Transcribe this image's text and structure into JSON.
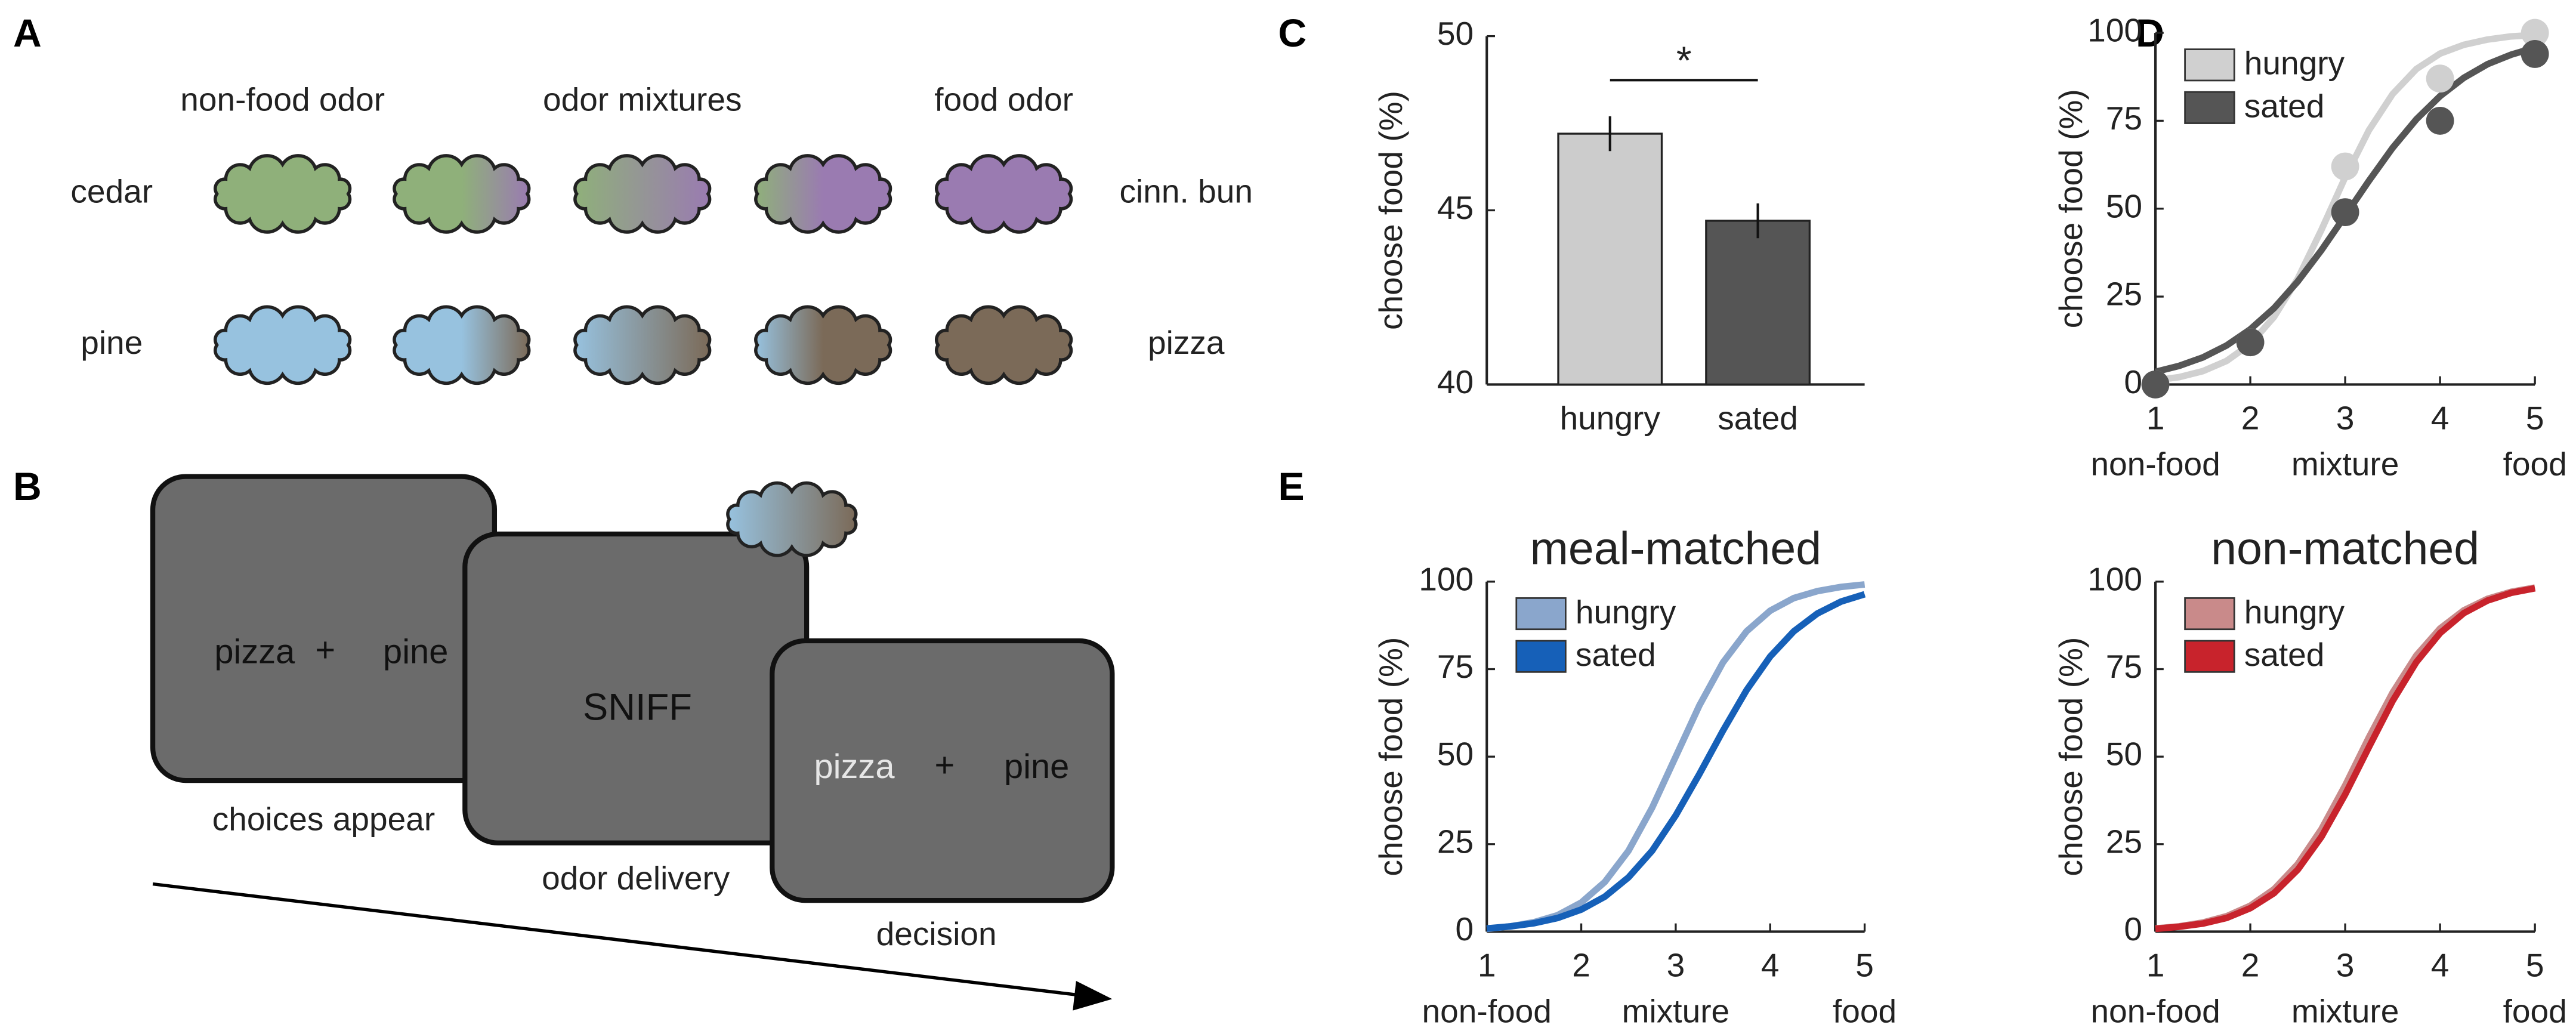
{
  "panel_labels": [
    "A",
    "B",
    "C",
    "D",
    "E"
  ],
  "odor_panel": {
    "headers": [
      "non-food odor",
      "odor mixtures",
      "food odor"
    ],
    "rows": [
      {
        "left": "cedar",
        "right": "cinn. bun",
        "colors": [
          "#8fb07a",
          "#9a7bb1"
        ]
      },
      {
        "left": "pine",
        "right": "pizza",
        "colors": [
          "#97c2df",
          "#7b6a58"
        ]
      }
    ]
  },
  "task_panel": {
    "screens": [
      {
        "texts": [
          "pizza",
          "+",
          "pine"
        ],
        "caption": "choices appear"
      },
      {
        "texts": [
          "SNIFF"
        ],
        "caption": "odor delivery"
      },
      {
        "texts": [
          "pizza",
          "+",
          "pine"
        ],
        "caption": "decision"
      }
    ]
  },
  "chart_data": [
    {
      "type": "bar",
      "ylabel": "choose food (%)",
      "categories": [
        "hungry",
        "sated"
      ],
      "values": [
        47.2,
        44.7
      ],
      "errors": [
        0.5,
        0.5
      ],
      "colors": [
        "#cccccc",
        "#555555"
      ],
      "ylim": [
        40,
        50
      ],
      "yticks": [
        40,
        45,
        50
      ],
      "significance": "*"
    },
    {
      "type": "scatter",
      "ylabel": "choose food (%)",
      "x": [
        1,
        2,
        3,
        4,
        5
      ],
      "fit_x": [
        1,
        1.25,
        1.5,
        1.75,
        2,
        2.25,
        2.5,
        2.75,
        3,
        3.25,
        3.5,
        3.75,
        4,
        4.25,
        4.5,
        4.75,
        5
      ],
      "series": [
        {
          "name": "hungry",
          "color": "#d0d0d0",
          "values": [
            0,
            12,
            62,
            87,
            100
          ],
          "fit": [
            1.2,
            2.1,
            3.8,
            6.7,
            11.5,
            19.2,
            30.1,
            44.0,
            58.9,
            72.3,
            82.6,
            89.7,
            94.1,
            96.6,
            98.1,
            99.0,
            99.4
          ]
        },
        {
          "name": "sated",
          "color": "#555555",
          "values": [
            0,
            12,
            49,
            75,
            94
          ],
          "fit": [
            3.6,
            5.3,
            7.7,
            11.1,
            15.7,
            21.7,
            29.3,
            38.2,
            48.0,
            57.9,
            67.3,
            75.4,
            82.0,
            87.2,
            91.1,
            93.8,
            95.8
          ]
        }
      ],
      "xlim": [
        1,
        5
      ],
      "xticks": [
        1,
        2,
        3,
        4,
        5
      ],
      "ylim": [
        0,
        100
      ],
      "yticks": [
        0,
        25,
        50,
        75,
        100
      ],
      "x_group_labels": [
        {
          "value": 1,
          "label": "non-food"
        },
        {
          "value": 3,
          "label": "mixture"
        },
        {
          "value": 5,
          "label": "food"
        }
      ],
      "legend": "upper left"
    },
    {
      "type": "line",
      "title": "meal-matched",
      "ylabel": "choose food (%)",
      "x": [
        1,
        1.25,
        1.5,
        1.75,
        2,
        2.25,
        2.5,
        2.75,
        3,
        3.25,
        3.5,
        3.75,
        4,
        4.25,
        4.5,
        4.75,
        5
      ],
      "series": [
        {
          "name": "hungry",
          "color": "#8aa6cc",
          "values": [
            0.8,
            1.5,
            2.7,
            4.7,
            8.3,
            14.2,
            23.1,
            35.4,
            50.0,
            64.6,
            76.9,
            85.8,
            91.7,
            95.3,
            97.3,
            98.5,
            99.2
          ]
        },
        {
          "name": "sated",
          "color": "#1660b8",
          "values": [
            0.9,
            1.5,
            2.4,
            3.9,
            6.3,
            10.0,
            15.5,
            23.1,
            33.2,
            45.0,
            57.4,
            69.0,
            78.6,
            85.8,
            90.9,
            94.3,
            96.4
          ]
        }
      ],
      "xlim": [
        1,
        5
      ],
      "xticks": [
        1,
        2,
        3,
        4,
        5
      ],
      "ylim": [
        0,
        100
      ],
      "yticks": [
        0,
        25,
        50,
        75,
        100
      ],
      "x_group_labels": [
        {
          "value": 1,
          "label": "non-food"
        },
        {
          "value": 3,
          "label": "mixture"
        },
        {
          "value": 5,
          "label": "food"
        }
      ],
      "legend": "upper left"
    },
    {
      "type": "line",
      "title": "non-matched",
      "ylabel": "choose food (%)",
      "x": [
        1,
        1.25,
        1.5,
        1.75,
        2,
        2.25,
        2.5,
        2.75,
        3,
        3.25,
        3.5,
        3.75,
        4,
        4.25,
        4.5,
        4.75,
        5
      ],
      "series": [
        {
          "name": "hungry",
          "color": "#c98a8a",
          "values": [
            0.9,
            1.5,
            2.6,
            4.4,
            7.4,
            12.1,
            19.3,
            29.3,
            41.8,
            55.5,
            68.3,
            78.9,
            86.6,
            91.8,
            95.1,
            97.1,
            98.3
          ]
        },
        {
          "name": "sated",
          "color": "#c8232c",
          "values": [
            0.8,
            1.4,
            2.3,
            3.9,
            6.7,
            11.0,
            17.7,
            27.1,
            39.2,
            52.7,
            65.9,
            77.0,
            85.3,
            91.0,
            94.6,
            96.8,
            98.1
          ]
        }
      ],
      "xlim": [
        1,
        5
      ],
      "xticks": [
        1,
        2,
        3,
        4,
        5
      ],
      "ylim": [
        0,
        100
      ],
      "yticks": [
        0,
        25,
        50,
        75,
        100
      ],
      "x_group_labels": [
        {
          "value": 1,
          "label": "non-food"
        },
        {
          "value": 3,
          "label": "mixture"
        },
        {
          "value": 5,
          "label": "food"
        }
      ],
      "legend": "upper left"
    }
  ]
}
